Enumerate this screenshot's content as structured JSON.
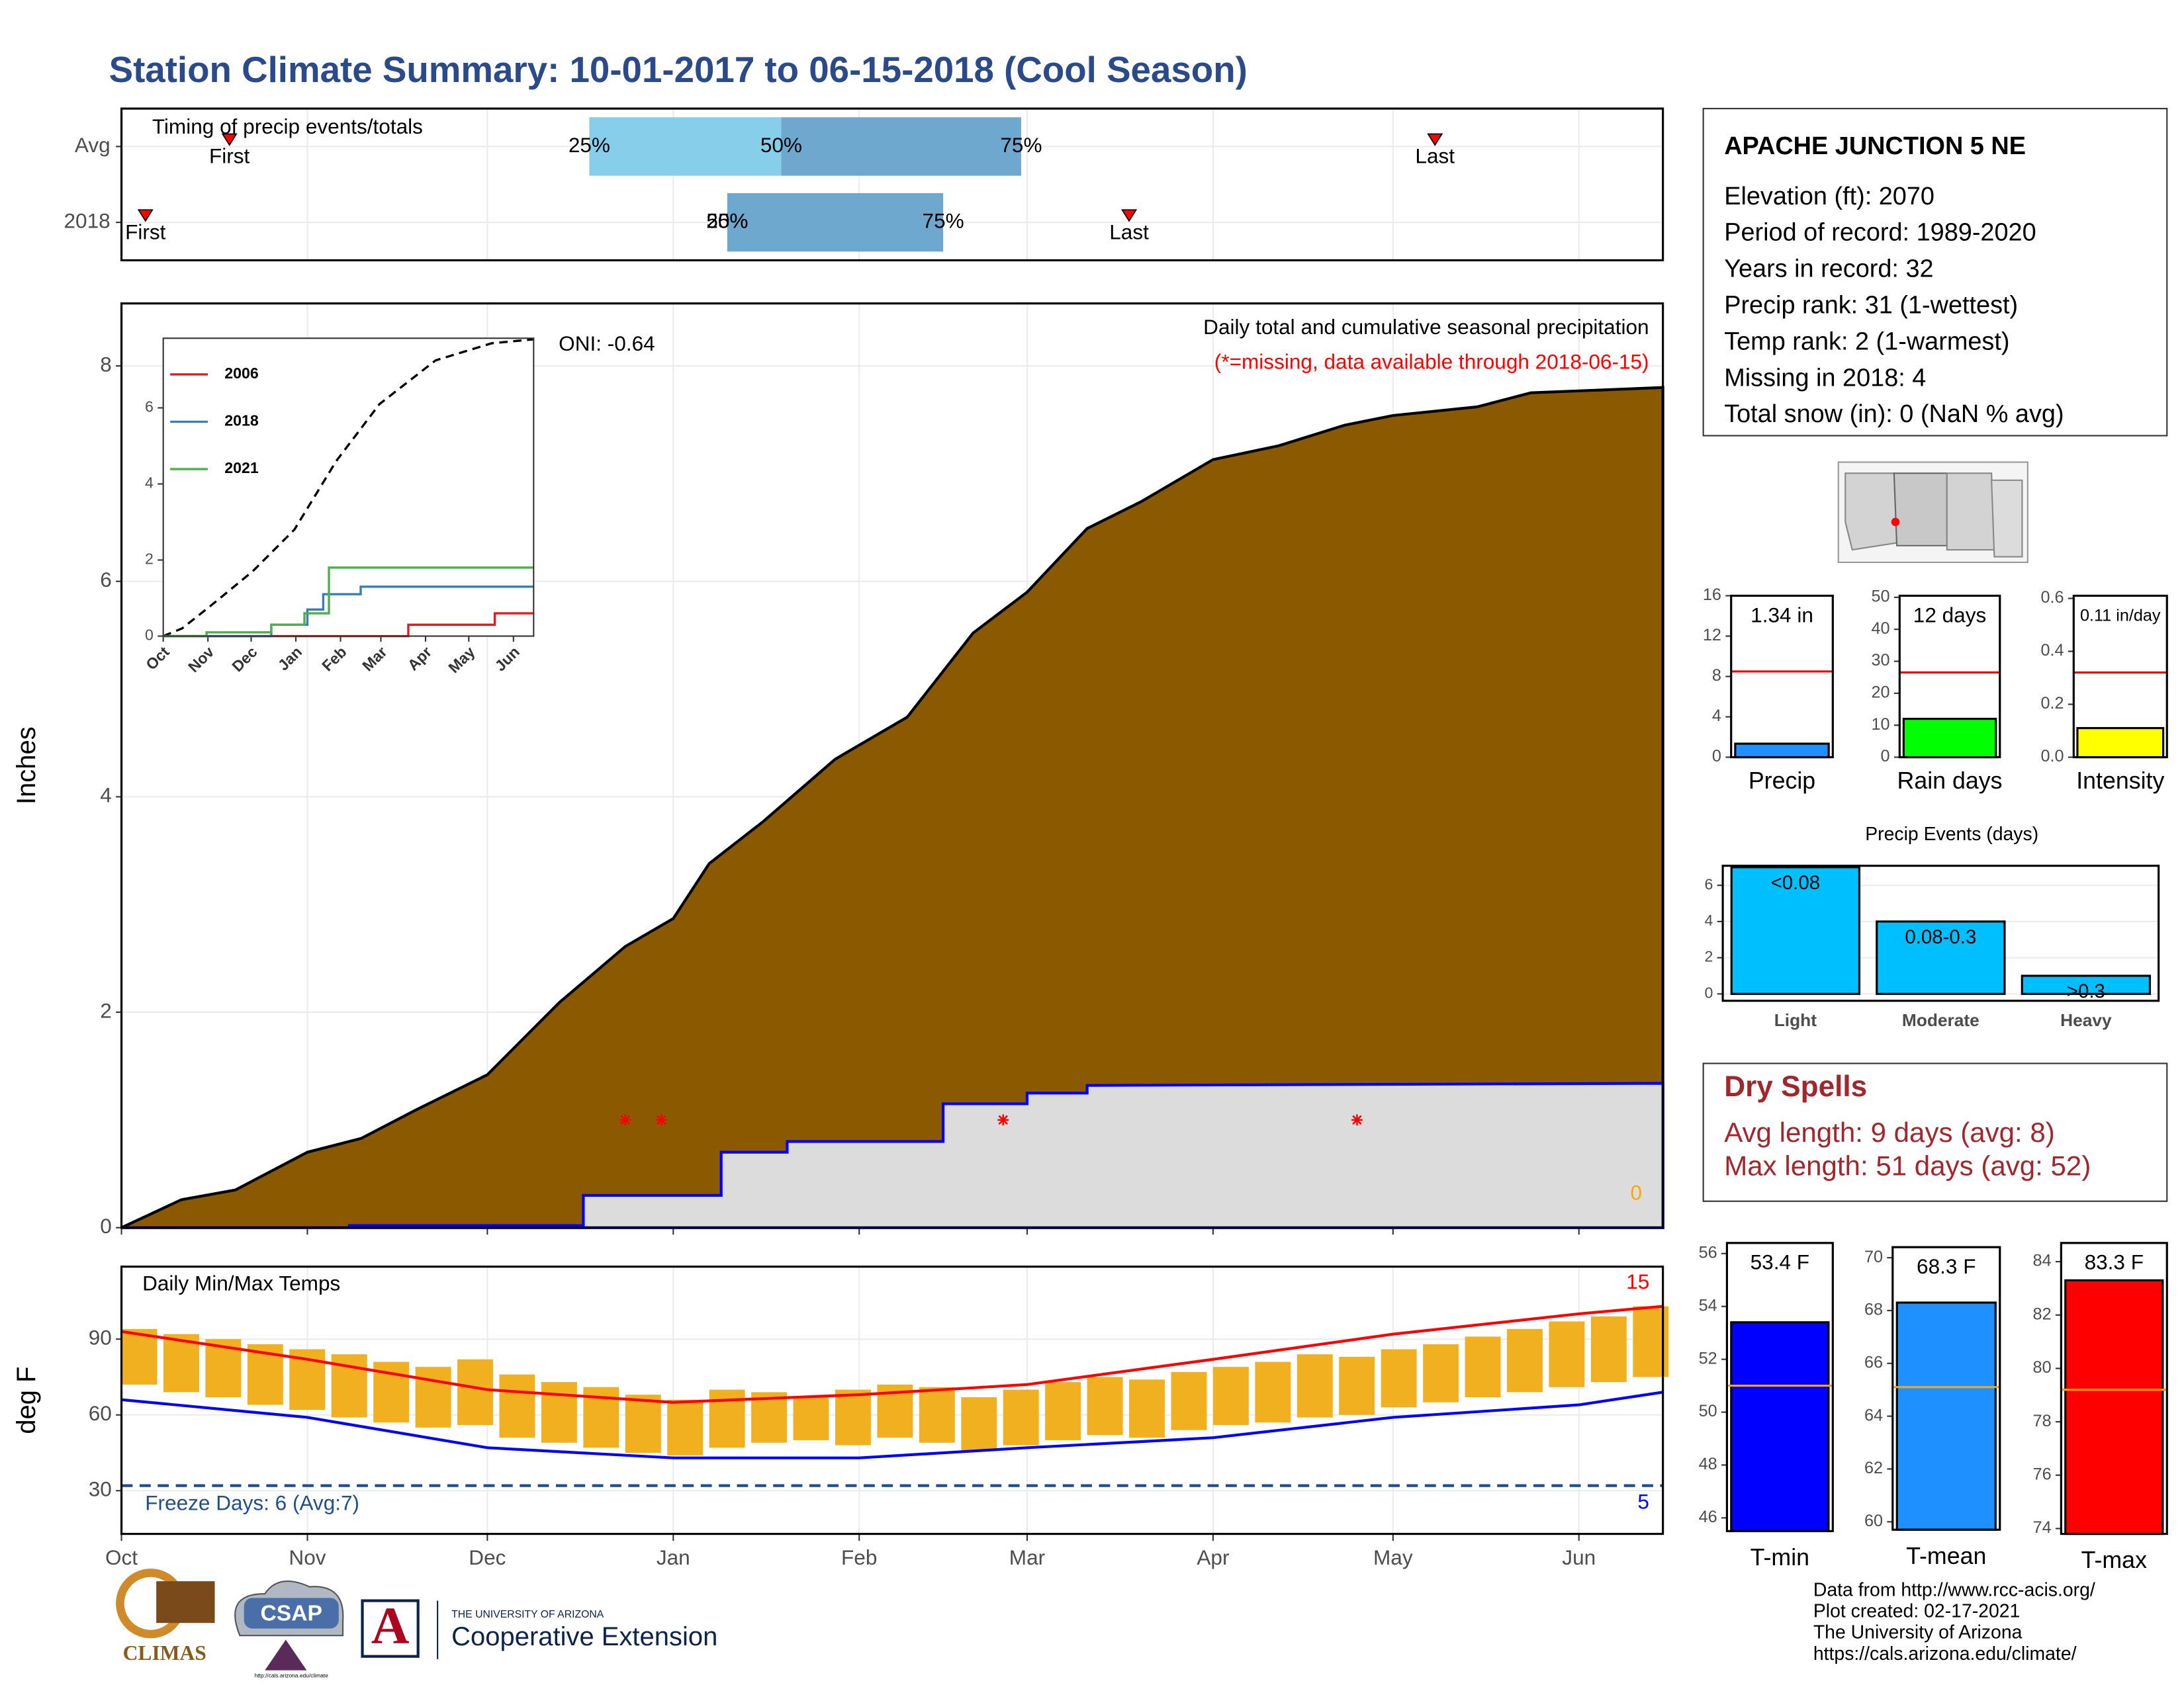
{
  "title": "Station Climate Summary: 10-01-2017 to 06-15-2018 (Cool Season)",
  "chart_data": [
    {
      "type": "timing",
      "title": "Timing of precip events/totals",
      "xlim": [
        0,
        257
      ],
      "xticks": [
        0,
        31,
        61,
        92,
        123,
        151,
        182,
        212,
        243
      ],
      "categories": [
        "Avg",
        "2018"
      ],
      "first": [
        18,
        4
      ],
      "last": [
        219,
        168
      ],
      "p25": [
        78,
        101
      ],
      "p50": [
        110,
        101
      ],
      "p75": [
        150,
        137
      ],
      "marker_labels": [
        "First",
        "Last"
      ],
      "percentile_labels": [
        "25%",
        "50%",
        "75%"
      ],
      "colors": [
        "#87ceeb",
        "#6fa8cf"
      ],
      "marker_color": "#ff0000"
    },
    {
      "type": "cumulative",
      "title": "Daily total and cumulative seasonal precipitation",
      "subtitle": "(*=missing, data available through 2018-06-15)",
      "subtitle_color": "#ff0000",
      "annotation": "ONI: -0.64",
      "snow_total": 0,
      "snow_color": "#ffa500",
      "ylabel": "Inches",
      "grid": true,
      "xlim": [
        0,
        257
      ],
      "xticks": [
        0,
        31,
        61,
        92,
        123,
        151,
        182,
        212,
        243
      ],
      "ylim": [
        0,
        8.58
      ],
      "yticks": [
        0,
        2,
        4,
        6,
        8
      ],
      "series": [
        {
          "color": "#8b5a00",
          "line_color": "#000000",
          "x": [
            0,
            10,
            19,
            31,
            40,
            49,
            61,
            73,
            84,
            92,
            98,
            107,
            119,
            131,
            142,
            151,
            161,
            170,
            182,
            193,
            204,
            212,
            226,
            235,
            257
          ],
          "values": [
            0,
            0.26,
            0.35,
            0.7,
            0.83,
            1.09,
            1.42,
            2.09,
            2.61,
            2.87,
            3.38,
            3.77,
            4.35,
            4.74,
            5.52,
            5.9,
            6.49,
            6.74,
            7.13,
            7.26,
            7.45,
            7.54,
            7.62,
            7.75,
            7.8
          ]
        },
        {
          "color": "#dcdcdc",
          "line_color": "#0000ff",
          "x": [
            0,
            38,
            38,
            77,
            77,
            100,
            100,
            111,
            111,
            137,
            137,
            151,
            151,
            161,
            161,
            257
          ],
          "values": [
            0,
            0,
            0.02,
            0.02,
            0.3,
            0.3,
            0.7,
            0.7,
            0.8,
            0.8,
            1.15,
            1.15,
            1.25,
            1.25,
            1.32,
            1.34
          ]
        }
      ],
      "missing": {
        "x": [
          84,
          90,
          147,
          206
        ],
        "y": [
          1,
          1,
          1,
          1
        ],
        "color": "#ff0000"
      }
    },
    {
      "type": "line",
      "xlim": [
        0,
        257
      ],
      "xticks": [
        {
          "value": 0,
          "label": "Oct"
        },
        {
          "value": 31,
          "label": "Nov"
        },
        {
          "value": 61,
          "label": "Dec"
        },
        {
          "value": 92,
          "label": "Jan"
        },
        {
          "value": 123,
          "label": "Feb"
        },
        {
          "value": 151,
          "label": "Mar"
        },
        {
          "value": 182,
          "label": "Apr"
        },
        {
          "value": 212,
          "label": "May"
        },
        {
          "value": 243,
          "label": "Jun"
        }
      ],
      "ylim": [
        0,
        7.83
      ],
      "yticks": [
        0,
        2,
        4,
        6
      ],
      "average": {
        "color": "#000000",
        "x": [
          0,
          13,
          32,
          62,
          91,
          120,
          150,
          189,
          228,
          257
        ],
        "values": [
          0,
          0.2,
          0.77,
          1.7,
          2.8,
          4.6,
          6.1,
          7.25,
          7.7,
          7.8
        ]
      },
      "series": [
        {
          "name": "2006",
          "color": "#e41a1c",
          "x": [
            0,
            170,
            170,
            230,
            230,
            257
          ],
          "values": [
            0,
            0,
            0.3,
            0.3,
            0.6,
            0.6
          ]
        },
        {
          "name": "2018",
          "color": "#377eb8",
          "x": [
            0,
            75,
            75,
            100,
            100,
            111,
            111,
            137,
            137,
            257
          ],
          "values": [
            0,
            0,
            0.3,
            0.3,
            0.7,
            0.7,
            1.1,
            1.1,
            1.3,
            1.3
          ]
        },
        {
          "name": "2021",
          "color": "#4daf4a",
          "x": [
            0,
            30,
            30,
            75,
            75,
            98,
            98,
            115,
            115,
            257
          ],
          "values": [
            0,
            0,
            0.1,
            0.1,
            0.3,
            0.3,
            0.6,
            0.6,
            1.8,
            1.8
          ]
        }
      ]
    },
    {
      "type": "bar",
      "categories": [
        "Precip"
      ],
      "values": [
        1.34
      ],
      "value_labels": [
        "1.34 in"
      ],
      "color": "#1e90ff",
      "ylim": [
        0,
        16
      ],
      "yticks": [
        0,
        4,
        8,
        12,
        16
      ],
      "avg_line": 8.5,
      "avg_color": "#ff0000"
    },
    {
      "type": "bar",
      "categories": [
        "Rain days"
      ],
      "values": [
        12
      ],
      "value_labels": [
        "12 days"
      ],
      "color": "#00ff00",
      "ylim": [
        0,
        50.5
      ],
      "yticks": [
        0,
        10,
        20,
        30,
        40,
        50
      ],
      "avg_line": 26.5,
      "avg_color": "#ff0000"
    },
    {
      "type": "bar",
      "categories": [
        "Intensity"
      ],
      "values": [
        0.11
      ],
      "value_labels": [
        "0.11 in/day"
      ],
      "color": "#ffff00",
      "ylim": [
        0,
        0.61
      ],
      "yticks": [
        {
          "value": 0,
          "label": "0.0"
        },
        0.2,
        0.4,
        0.6
      ],
      "avg_line": 0.32,
      "avg_color": "#ff0000"
    },
    {
      "type": "bar",
      "title": "Precip Events (days)",
      "categories": [
        "Light",
        "Moderate",
        "Heavy"
      ],
      "values": [
        7,
        4,
        1
      ],
      "bin_labels": [
        "<0.08",
        "0.08-0.3",
        ">0.3"
      ],
      "color": "#00bfff",
      "grid": true,
      "ylim": [
        -0.38,
        7.08
      ],
      "yticks": [
        0,
        2,
        4,
        6
      ]
    },
    {
      "type": "temperature",
      "title": "Daily Min/Max Temps",
      "ylabel": "deg F",
      "grid": true,
      "xlim": [
        0,
        257
      ],
      "xticks": [
        {
          "value": 0,
          "label": "Oct"
        },
        {
          "value": 31,
          "label": "Nov"
        },
        {
          "value": 61,
          "label": "Dec"
        },
        {
          "value": 92,
          "label": "Jan"
        },
        {
          "value": 123,
          "label": "Feb"
        },
        {
          "value": 151,
          "label": "Mar"
        },
        {
          "value": 182,
          "label": "Apr"
        },
        {
          "value": 212,
          "label": "May"
        },
        {
          "value": 243,
          "label": "Jun"
        }
      ],
      "ylim": [
        12.9,
        118.7
      ],
      "yticks": [
        30,
        60,
        90
      ],
      "x": [
        0,
        7,
        14,
        21,
        28,
        35,
        42,
        49,
        56,
        63,
        70,
        77,
        84,
        91,
        98,
        105,
        112,
        119,
        126,
        133,
        140,
        147,
        154,
        161,
        168,
        175,
        182,
        189,
        196,
        203,
        210,
        217,
        224,
        231,
        238,
        245,
        252
      ],
      "tmax": [
        94,
        92,
        90,
        88,
        86,
        84,
        81,
        79,
        82,
        76,
        73,
        71,
        68,
        66,
        70,
        69,
        67,
        70,
        72,
        71,
        67,
        70,
        73,
        75,
        74,
        77,
        79,
        81,
        84,
        83,
        86,
        88,
        91,
        94,
        97,
        99,
        103
      ],
      "tmin": [
        72,
        69,
        67,
        64,
        62,
        59,
        57,
        55,
        56,
        51,
        49,
        47,
        45,
        44,
        47,
        49,
        50,
        48,
        51,
        49,
        46,
        48,
        50,
        52,
        51,
        54,
        56,
        57,
        59,
        60,
        63,
        65,
        67,
        69,
        71,
        73,
        75
      ],
      "bar_color": "#f0b020",
      "avg_max": {
        "color": "#ff0000",
        "x": [
          0,
          31,
          61,
          92,
          123,
          151,
          182,
          212,
          243,
          257
        ],
        "values": [
          93,
          82,
          70,
          65,
          68,
          72,
          82,
          92,
          100,
          103
        ]
      },
      "avg_min": {
        "color": "#0000ff",
        "x": [
          0,
          31,
          61,
          92,
          123,
          151,
          182,
          212,
          243,
          257
        ],
        "values": [
          66,
          59,
          47,
          43,
          43,
          47,
          51,
          59,
          64,
          69
        ]
      },
      "freeze_line": 32,
      "freeze_color": "#1f4e8c",
      "freeze_label": "Freeze Days: 6 (Avg:7)",
      "record_high_count": 15,
      "record_high_color": "#ff0000",
      "record_low_count": 5,
      "record_low_color": "#0000ff"
    },
    {
      "type": "bar",
      "categories": [
        "T-min"
      ],
      "values": [
        53.4
      ],
      "value_labels": [
        "53.4 F"
      ],
      "color": "#0000ff",
      "ylim": [
        45.5,
        56.4
      ],
      "yticks": [
        46,
        48,
        50,
        52,
        54,
        56
      ],
      "avg_line": 51,
      "avg_color": "#ffa500"
    },
    {
      "type": "bar",
      "categories": [
        "T-mean"
      ],
      "values": [
        68.3
      ],
      "value_labels": [
        "68.3 F"
      ],
      "color": "#1e90ff",
      "ylim": [
        59.7,
        70.4
      ],
      "yticks": [
        60,
        62,
        64,
        66,
        68,
        70
      ],
      "avg_line": 65.1,
      "avg_color": "#ffa500"
    },
    {
      "type": "bar",
      "categories": [
        "T-max"
      ],
      "values": [
        83.3
      ],
      "value_labels": [
        "83.3 F"
      ],
      "color": "#ff0000",
      "ylim": [
        73.8,
        84.7
      ],
      "yticks": [
        74,
        76,
        78,
        80,
        82,
        84
      ],
      "avg_line": 79.2,
      "avg_color": "#ffa500"
    }
  ],
  "station": {
    "name": "APACHE JUNCTION 5 NE",
    "lines": [
      "Elevation (ft): 2070",
      "Period of record: 1989-2020",
      "Years in record: 32",
      "Precip rank: 31 (1-wettest)",
      "Temp rank: 2 (1-warmest)",
      "Missing in 2018: 4",
      "Total snow (in): 0 (NaN % avg)"
    ]
  },
  "dry_spells": {
    "title": "Dry Spells",
    "lines": [
      "Avg length: 9 days (avg: 8)",
      "Max length: 51 days (avg: 52)"
    ]
  },
  "footer": [
    "Data from http://www.rcc-acis.org/",
    "Plot created: 02-17-2021",
    "The University of Arizona",
    "https://cals.arizona.edu/climate/"
  ],
  "logos": {
    "climas": "CLIMAS",
    "csap": "CSAP",
    "csap_url": "http://cals.arizona.edu/climate",
    "ua_letter": "A",
    "ua_top": "THE UNIVERSITY OF ARIZONA",
    "ua_name": "Cooperative Extension"
  }
}
